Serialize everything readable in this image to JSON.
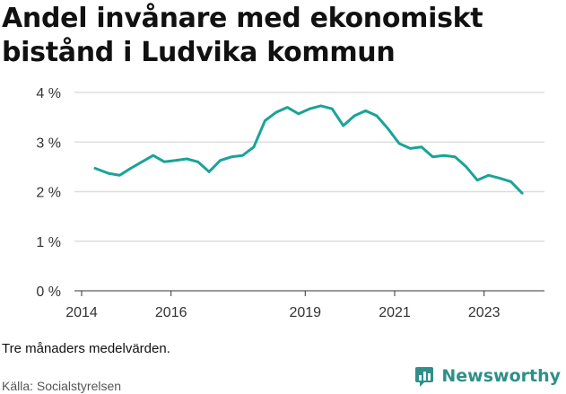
{
  "title": "Andel invånare med ekonomiskt bistånd i Ludvika kommun",
  "note": "Tre månaders medelvärden.",
  "source": "Källa: Socialstyrelsen",
  "brand": {
    "name": "Newsworthy",
    "icon": "bar-chart-logo-icon",
    "color": "#2f8f8a"
  },
  "chart_data": {
    "type": "line",
    "x_tick_labels": [
      "2014",
      "2016",
      "2019",
      "2021",
      "2023"
    ],
    "y_tick_labels": [
      "0 %",
      "1 %",
      "2 %",
      "3 %",
      "4 %"
    ],
    "ylim": [
      0,
      4
    ],
    "grid": true,
    "line_color": "#1aa399",
    "series": [
      {
        "x": [
          2014.3,
          2014.6,
          2014.85,
          2015.1,
          2015.35,
          2015.6,
          2015.85,
          2016.1,
          2016.35,
          2016.6,
          2016.85,
          2017.1,
          2017.35,
          2017.6,
          2017.85,
          2018.1,
          2018.35,
          2018.6,
          2018.85,
          2019.1,
          2019.35,
          2019.6,
          2019.85,
          2020.1,
          2020.35,
          2020.6,
          2020.85,
          2021.1,
          2021.35,
          2021.6,
          2021.85,
          2022.1,
          2022.35,
          2022.6,
          2022.85,
          2023.1,
          2023.35,
          2023.6,
          2023.85
        ],
        "y": [
          2.47,
          2.37,
          2.33,
          2.47,
          2.6,
          2.73,
          2.6,
          2.63,
          2.66,
          2.6,
          2.4,
          2.63,
          2.7,
          2.73,
          2.9,
          3.43,
          3.6,
          3.7,
          3.57,
          3.67,
          3.73,
          3.67,
          3.33,
          3.53,
          3.63,
          3.53,
          3.27,
          2.97,
          2.87,
          2.9,
          2.7,
          2.73,
          2.7,
          2.5,
          2.23,
          2.33,
          2.27,
          2.2,
          1.97
        ]
      }
    ]
  }
}
